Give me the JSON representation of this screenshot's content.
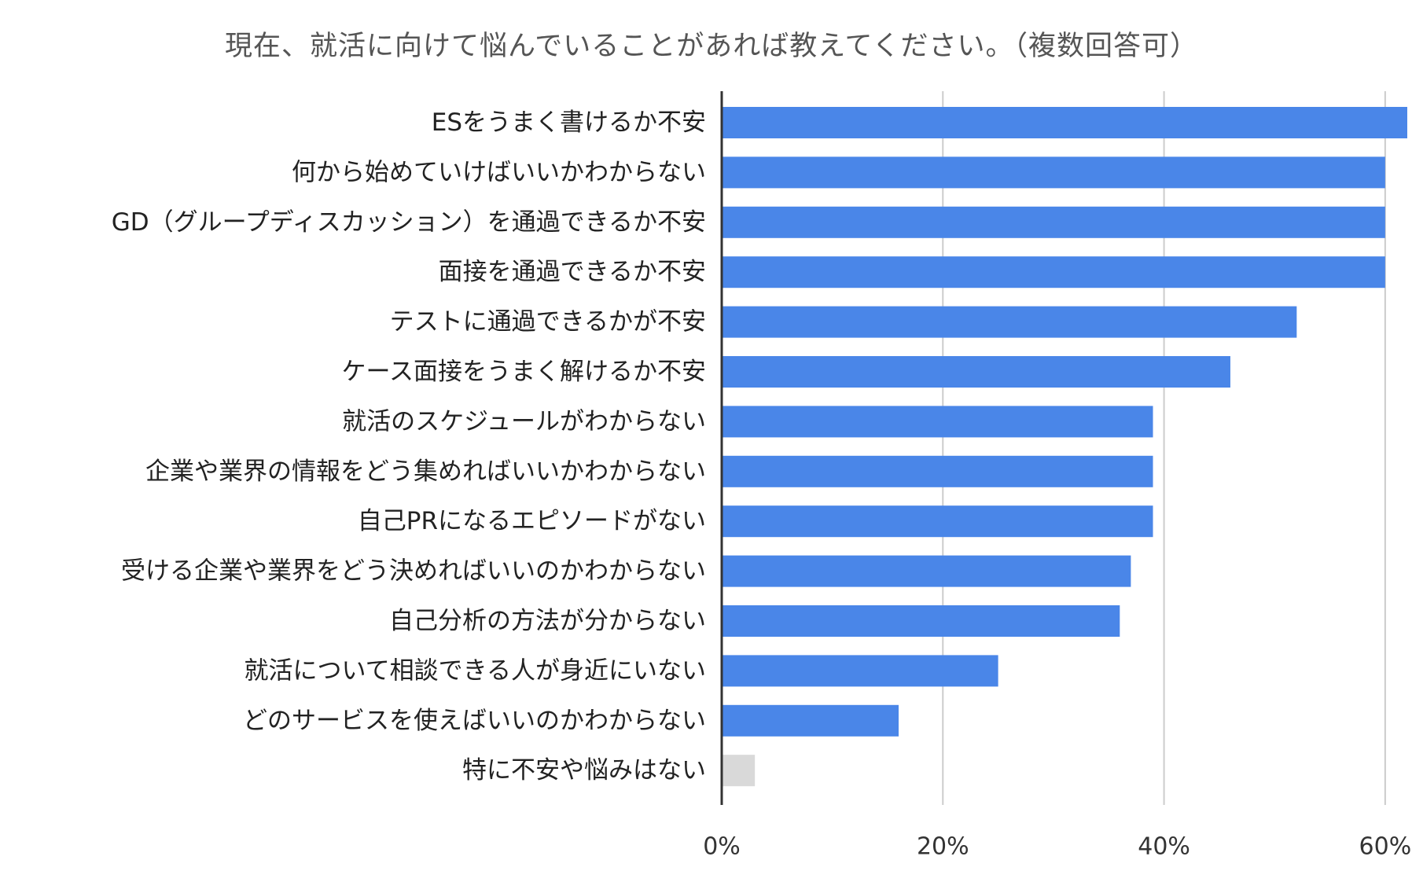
{
  "chart_data": {
    "type": "bar",
    "orientation": "horizontal",
    "title": "現在、就活に向けて悩んでいることがあれば教えてください。（複数回答可）",
    "categories": [
      "ESをうまく書けるか不安",
      "何から始めていけばいいかわからない",
      "GD（グループディスカッション）を通過できるか不安",
      "面接を通過できるか不安",
      "テストに通過できるかが不安",
      "ケース面接をうまく解けるか不安",
      "就活のスケジュールがわからない",
      "企業や業界の情報をどう集めればいいかわからない",
      "自己PRになるエピソードがない",
      "受ける企業や業界をどう決めればいいのかわからない",
      "自己分析の方法が分からない",
      "就活について相談できる人が身近にいない",
      "どのサービスを使えばいいのかわからない",
      "特に不安や悩みはない"
    ],
    "values": [
      62,
      60,
      60,
      60,
      52,
      46,
      39,
      39,
      39,
      37,
      36,
      25,
      16,
      3
    ],
    "bar_colors": [
      "#4a86e8",
      "#4a86e8",
      "#4a86e8",
      "#4a86e8",
      "#4a86e8",
      "#4a86e8",
      "#4a86e8",
      "#4a86e8",
      "#4a86e8",
      "#4a86e8",
      "#4a86e8",
      "#4a86e8",
      "#4a86e8",
      "#d9d9d9"
    ],
    "xlim": [
      0,
      62
    ],
    "xticks": [
      0,
      20,
      40,
      60
    ],
    "xtick_labels": [
      "0%",
      "20%",
      "40%",
      "60%"
    ],
    "grid": true,
    "legend": "none",
    "colors": {
      "grid": "#cccccc",
      "axis": "#333333",
      "title": "#555555"
    }
  }
}
